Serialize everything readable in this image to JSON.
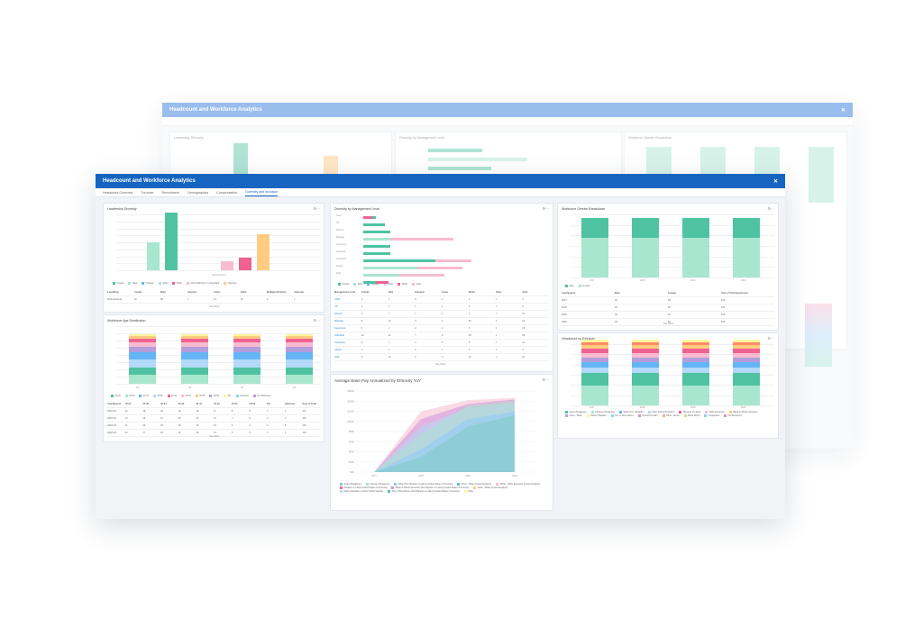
{
  "back_window": {
    "title": "Headcount and Workforce Analytics",
    "panels": [
      {
        "title": "Leadership Diversity"
      },
      {
        "title": "Diversity by Management Level"
      },
      {
        "title": "Workforce Gender Breakdown"
      }
    ]
  },
  "window": {
    "title": "Headcount and Workforce Analytics",
    "close_icon": "close-icon"
  },
  "tabs": [
    "Headcount Overview",
    "Turnover",
    "Recruitment",
    "Demographics",
    "Compensation",
    "Diversity and Inclusion"
  ],
  "active_tab": 5,
  "colors": {
    "teal": "#4fc3a1",
    "mint": "#a8e6cf",
    "pink": "#f06292",
    "lightpink": "#f8bbd0",
    "orange": "#ffcc80",
    "blue": "#64b5f6",
    "lightblue": "#b3d9f9",
    "purple": "#b39ddb",
    "yellow": "#fff59d",
    "header_blue": "#1565c0"
  },
  "panels": {
    "leadership": {
      "title": "Leadership Diversity",
      "legend": [
        "Female",
        "Male",
        "Hispanic",
        "Asian",
        "White",
        "Other Ethnicity or Unspecified",
        "Unknown"
      ],
      "table_head": [
        "Level/Role",
        "Female",
        "Male",
        "Hispanic",
        "Asian",
        "White",
        "Multiple Ethnicity",
        "Unknown"
      ],
      "table_rows": [
        [
          "All Employees",
          "23",
          "38",
          "5",
          "12",
          "18",
          "4",
          "2"
        ]
      ],
      "see_more": "See More"
    },
    "age": {
      "title": "Workforce Age Distribution",
      "categories": [
        "Q1",
        "Q2",
        "Q3",
        "Q4"
      ],
      "legend": [
        "18-24",
        "25-29",
        "30-34",
        "35-39",
        "40-44",
        "45-49",
        "50-54",
        "55-59",
        "60+",
        "Unknown",
        "Not Disclosed"
      ],
      "table_head": [
        "Year/Quarter",
        "18-24",
        "25-29",
        "30-34",
        "35-39",
        "40-44",
        "45-49",
        "50-54",
        "55-59",
        "60+",
        "Unknown",
        "Sum of Total"
      ],
      "table_rows": [
        [
          "2018 Q1",
          "12",
          "18",
          "22",
          "19",
          "15",
          "11",
          "8",
          "5",
          "2",
          "1",
          "113"
        ],
        [
          "2018 Q2",
          "13",
          "19",
          "21",
          "20",
          "14",
          "12",
          "7",
          "5",
          "3",
          "1",
          "115"
        ],
        [
          "2018 Q3",
          "11",
          "20",
          "23",
          "18",
          "16",
          "10",
          "9",
          "4",
          "2",
          "2",
          "115"
        ],
        [
          "2018 Q4",
          "12",
          "17",
          "22",
          "21",
          "15",
          "12",
          "8",
          "6",
          "2",
          "1",
          "116"
        ]
      ],
      "see_more": "See More"
    },
    "management": {
      "title": "Diversity by Management Level",
      "legend": [
        "Female",
        "Male",
        "Hispanic",
        "Asian",
        "White",
        "Other"
      ],
      "table_head": [
        "Management Level",
        "Female",
        "Male",
        "Hispanic",
        "Asian",
        "White",
        "Other",
        "Total"
      ],
      "table_rows": [
        [
          "Chief",
          "1",
          "2",
          "0",
          "1",
          "2",
          "0",
          "3"
        ],
        [
          "VP",
          "2",
          "4",
          "1",
          "1",
          "3",
          "1",
          "6"
        ],
        [
          "Director",
          "4",
          "7",
          "1",
          "2",
          "6",
          "2",
          "11"
        ],
        [
          "Manager",
          "8",
          "12",
          "3",
          "4",
          "10",
          "3",
          "20"
        ],
        [
          "Supervisor",
          "6",
          "9",
          "2",
          "3",
          "8",
          "2",
          "15"
        ],
        [
          "Individual",
          "22",
          "31",
          "7",
          "9",
          "28",
          "9",
          "53"
        ],
        [
          "Contractor",
          "5",
          "6",
          "1",
          "2",
          "6",
          "2",
          "11"
        ],
        [
          "Partner",
          "1",
          "3",
          "0",
          "1",
          "2",
          "1",
          "4"
        ],
        [
          "Staff",
          "9",
          "14",
          "3",
          "4",
          "12",
          "4",
          "23"
        ]
      ],
      "see_more": "See More"
    },
    "gender": {
      "title": "Workforce Gender Breakdown",
      "categories": [
        "2017",
        "2018",
        "2019",
        "2020"
      ],
      "legend": [
        "Male",
        "Female"
      ],
      "table_head": [
        "Year/Quarter",
        "Male",
        "Female",
        "Sum of Total Headcount"
      ],
      "table_rows": [
        [
          "2017",
          "42",
          "58",
          "100"
        ],
        [
          "2018",
          "45",
          "60",
          "105"
        ],
        [
          "2019",
          "44",
          "62",
          "106"
        ],
        [
          "2020",
          "43",
          "61",
          "104"
        ]
      ],
      "see_more": "See More"
    },
    "pay": {
      "title": "Average Base Pay Annualized by Ethnicity YoY",
      "y_ticks": [
        "$160K",
        "$140K",
        "$120K",
        "$100K",
        "$80K",
        "$60K",
        "$40K",
        "$20K",
        "$0K"
      ],
      "x_ticks": [
        "2017",
        "2018",
        "2019",
        "2020"
      ],
      "legend": [
        "Asian (Singapore)",
        "Chinese (Singapore)",
        "White (Tim Hispanic or Latino) (United States of America)",
        "Other - White (United Kingdom)",
        "White - White European (United Kingdom)",
        "Hispanic or Latino (United States of America)",
        "Black or African American (Not Hispanic or Latino) (United States of America)",
        "Asian - White (United Kingdom)",
        "Native Hawaiian or Other Pacific Islander",
        "Two or More Races (Not Hispanic or Latino) (United States of America)",
        "Other"
      ]
    },
    "ethnicity": {
      "title": "Headcount by Ethnicity",
      "categories": [
        "2017",
        "2018",
        "2019",
        "2020"
      ],
      "legend": [
        "Asian (Singapore)",
        "Chinese (Singapore)",
        "White (Tim Hispanic)",
        "Other (United Kingdom)",
        "Hispanic or Latino",
        "White European",
        "Black or African American",
        "Asian - White",
        "Native Hawaiian",
        "Two or More Races",
        "American Indian",
        "Other - Mixed",
        "White Mixed",
        "Unspecified",
        "Not Disclosed"
      ]
    }
  }
}
